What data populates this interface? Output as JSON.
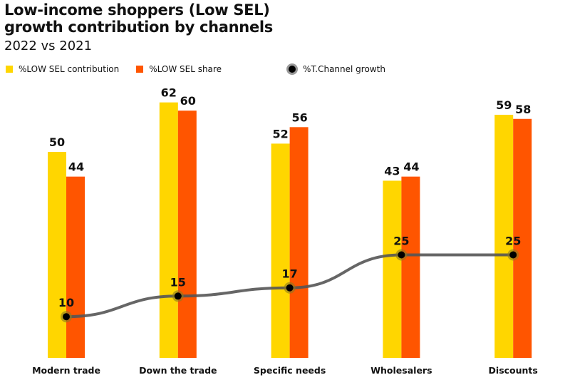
{
  "chart_data": {
    "type": "bar",
    "title": "Low-income shoppers (Low SEL) growth contribution by channels",
    "title_lines": [
      "Low-income shoppers (Low SEL)",
      "growth contribution by channels"
    ],
    "subtitle": "2022 vs 2021",
    "categories": [
      "Modern trade",
      "Down the trade",
      "Specific needs",
      "Wholesalers",
      "Discounts"
    ],
    "series": [
      {
        "name": "%LOW SEL contribution",
        "type": "bar",
        "color": "#FFD600",
        "values": [
          50,
          62,
          52,
          43,
          59
        ]
      },
      {
        "name": "%LOW SEL share",
        "type": "bar",
        "color": "#FF5500",
        "values": [
          44,
          60,
          56,
          44,
          58
        ]
      },
      {
        "name": "%T.Channel growth",
        "type": "line",
        "color": "#555555",
        "values": [
          10,
          15,
          17,
          25,
          25
        ]
      }
    ],
    "ylim": [
      0,
      87
    ],
    "grid": false,
    "legend_position": "top-left",
    "xlabel": "",
    "ylabel": ""
  }
}
